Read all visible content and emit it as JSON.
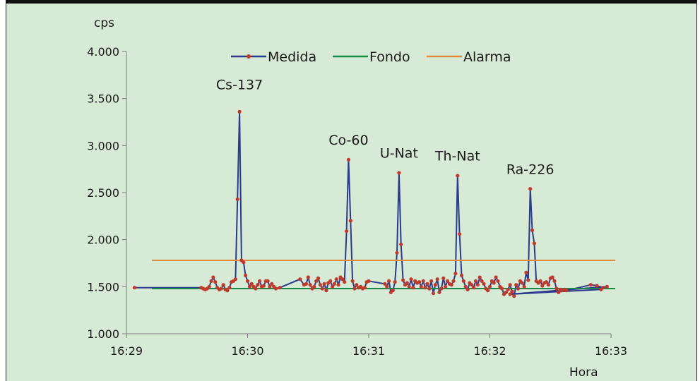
{
  "chart_data": {
    "type": "line",
    "ylabel": "cps",
    "xlabel": "Hora",
    "ylim": [
      1000,
      4000
    ],
    "yticks": [
      1000,
      1500,
      2000,
      2500,
      3000,
      3500,
      4000
    ],
    "ytick_labels": [
      "1.000",
      "1.500",
      "2.000",
      "2.500",
      "3.000",
      "3.500",
      "4.000"
    ],
    "xlim": [
      "16:29",
      "16:33"
    ],
    "xticks": [
      "16:29",
      "16:30",
      "16:31",
      "16:32",
      "16:33"
    ],
    "grid": false,
    "legend_position": "top",
    "series": [
      {
        "name": "Medida",
        "color": "#2b3a8c",
        "marker_color": "#c0392b",
        "marker": "circle",
        "points": [
          [
            "16:29:04",
            1490
          ],
          [
            "16:29:37",
            1490
          ],
          [
            "16:29:38",
            1480
          ],
          [
            "16:29:39",
            1470
          ],
          [
            "16:29:40",
            1480
          ],
          [
            "16:29:41",
            1500
          ],
          [
            "16:29:42",
            1560
          ],
          [
            "16:29:43",
            1600
          ],
          [
            "16:29:44",
            1550
          ],
          [
            "16:29:45",
            1490
          ],
          [
            "16:29:46",
            1470
          ],
          [
            "16:29:47",
            1480
          ],
          [
            "16:29:48",
            1520
          ],
          [
            "16:29:49",
            1470
          ],
          [
            "16:29:50",
            1460
          ],
          [
            "16:29:51",
            1490
          ],
          [
            "16:29:52",
            1550
          ],
          [
            "16:29:53",
            1560
          ],
          [
            "16:29:54",
            1580
          ],
          [
            "16:29:55",
            2430
          ],
          [
            "16:29:56",
            3360
          ],
          [
            "16:29:57",
            1780
          ],
          [
            "16:29:58",
            1760
          ],
          [
            "16:29:59",
            1620
          ],
          [
            "16:30:00",
            1560
          ],
          [
            "16:30:01",
            1500
          ],
          [
            "16:30:02",
            1530
          ],
          [
            "16:30:03",
            1500
          ],
          [
            "16:30:04",
            1480
          ],
          [
            "16:30:05",
            1520
          ],
          [
            "16:30:06",
            1560
          ],
          [
            "16:30:07",
            1500
          ],
          [
            "16:30:08",
            1510
          ],
          [
            "16:30:09",
            1560
          ],
          [
            "16:30:10",
            1560
          ],
          [
            "16:30:11",
            1500
          ],
          [
            "16:30:12",
            1530
          ],
          [
            "16:30:13",
            1500
          ],
          [
            "16:30:14",
            1480
          ],
          [
            "16:30:16",
            1490
          ],
          [
            "16:30:26",
            1580
          ],
          [
            "16:30:28",
            1520
          ],
          [
            "16:30:29",
            1530
          ],
          [
            "16:30:30",
            1600
          ],
          [
            "16:30:31",
            1520
          ],
          [
            "16:30:32",
            1480
          ],
          [
            "16:30:33",
            1500
          ],
          [
            "16:30:34",
            1560
          ],
          [
            "16:30:35",
            1590
          ],
          [
            "16:30:36",
            1520
          ],
          [
            "16:30:37",
            1480
          ],
          [
            "16:30:38",
            1530
          ],
          [
            "16:30:39",
            1460
          ],
          [
            "16:30:40",
            1540
          ],
          [
            "16:30:41",
            1560
          ],
          [
            "16:30:42",
            1500
          ],
          [
            "16:30:43",
            1530
          ],
          [
            "16:30:44",
            1580
          ],
          [
            "16:30:45",
            1520
          ],
          [
            "16:30:46",
            1600
          ],
          [
            "16:30:47",
            1580
          ],
          [
            "16:30:48",
            1550
          ],
          [
            "16:30:49",
            2090
          ],
          [
            "16:30:50",
            2850
          ],
          [
            "16:30:51",
            2200
          ],
          [
            "16:30:52",
            1560
          ],
          [
            "16:30:53",
            1480
          ],
          [
            "16:30:54",
            1520
          ],
          [
            "16:30:55",
            1490
          ],
          [
            "16:30:56",
            1500
          ],
          [
            "16:30:57",
            1480
          ],
          [
            "16:30:58",
            1490
          ],
          [
            "16:30:59",
            1550
          ],
          [
            "16:31:00",
            1560
          ],
          [
            "16:31:08",
            1530
          ],
          [
            "16:31:09",
            1500
          ],
          [
            "16:31:10",
            1560
          ],
          [
            "16:31:11",
            1440
          ],
          [
            "16:31:12",
            1460
          ],
          [
            "16:31:13",
            1550
          ],
          [
            "16:31:14",
            1860
          ],
          [
            "16:31:15",
            2710
          ],
          [
            "16:31:16",
            1950
          ],
          [
            "16:31:17",
            1570
          ],
          [
            "16:31:18",
            1520
          ],
          [
            "16:31:19",
            1540
          ],
          [
            "16:31:20",
            1500
          ],
          [
            "16:31:21",
            1580
          ],
          [
            "16:31:22",
            1490
          ],
          [
            "16:31:23",
            1560
          ],
          [
            "16:31:24",
            1540
          ],
          [
            "16:31:25",
            1550
          ],
          [
            "16:31:26",
            1500
          ],
          [
            "16:31:27",
            1560
          ],
          [
            "16:31:28",
            1490
          ],
          [
            "16:31:29",
            1530
          ],
          [
            "16:31:30",
            1480
          ],
          [
            "16:31:31",
            1560
          ],
          [
            "16:31:32",
            1430
          ],
          [
            "16:31:33",
            1520
          ],
          [
            "16:31:34",
            1580
          ],
          [
            "16:31:35",
            1440
          ],
          [
            "16:31:36",
            1480
          ],
          [
            "16:31:37",
            1590
          ],
          [
            "16:31:38",
            1500
          ],
          [
            "16:31:39",
            1560
          ],
          [
            "16:31:40",
            1530
          ],
          [
            "16:31:41",
            1520
          ],
          [
            "16:31:42",
            1560
          ],
          [
            "16:31:43",
            1640
          ],
          [
            "16:31:44",
            2680
          ],
          [
            "16:31:45",
            2060
          ],
          [
            "16:31:46",
            1620
          ],
          [
            "16:31:47",
            1560
          ],
          [
            "16:31:48",
            1500
          ],
          [
            "16:31:49",
            1470
          ],
          [
            "16:31:50",
            1540
          ],
          [
            "16:31:51",
            1520
          ],
          [
            "16:31:52",
            1490
          ],
          [
            "16:31:53",
            1560
          ],
          [
            "16:31:54",
            1520
          ],
          [
            "16:31:55",
            1600
          ],
          [
            "16:31:56",
            1560
          ],
          [
            "16:31:57",
            1530
          ],
          [
            "16:31:58",
            1480
          ],
          [
            "16:31:59",
            1460
          ],
          [
            "16:32:00",
            1500
          ],
          [
            "16:32:01",
            1560
          ],
          [
            "16:32:02",
            1540
          ],
          [
            "16:32:03",
            1600
          ],
          [
            "16:32:04",
            1560
          ],
          [
            "16:32:05",
            1500
          ],
          [
            "16:32:06",
            1480
          ],
          [
            "16:32:07",
            1420
          ],
          [
            "16:32:08",
            1440
          ],
          [
            "16:32:09",
            1470
          ],
          [
            "16:32:10",
            1520
          ],
          [
            "16:32:11",
            1450
          ],
          [
            "16:32:12",
            1400
          ],
          [
            "16:32:13",
            1520
          ],
          [
            "16:32:14",
            1480
          ],
          [
            "16:32:15",
            1560
          ],
          [
            "16:32:16",
            1540
          ],
          [
            "16:32:17",
            1500
          ],
          [
            "16:32:18",
            1650
          ],
          [
            "16:32:19",
            1570
          ],
          [
            "16:32:20",
            2540
          ],
          [
            "16:32:21",
            2100
          ],
          [
            "16:32:22",
            1960
          ],
          [
            "16:32:23",
            1560
          ],
          [
            "16:32:24",
            1540
          ],
          [
            "16:32:25",
            1560
          ],
          [
            "16:32:26",
            1510
          ],
          [
            "16:32:27",
            1540
          ],
          [
            "16:32:28",
            1550
          ],
          [
            "16:32:29",
            1520
          ],
          [
            "16:32:30",
            1590
          ],
          [
            "16:32:31",
            1600
          ],
          [
            "16:32:32",
            1560
          ],
          [
            "16:32:33",
            1480
          ],
          [
            "16:32:34",
            1440
          ],
          [
            "16:32:35",
            1470
          ],
          [
            "16:32:36",
            1460
          ],
          [
            "16:32:37",
            1470
          ],
          [
            "16:32:38",
            1460
          ],
          [
            "16:32:50",
            1520
          ],
          [
            "16:32:53",
            1510
          ],
          [
            "16:32:56",
            1490
          ],
          [
            "16:32:58",
            1500
          ],
          [
            "16:32:10",
            1420
          ],
          [
            "16:32:55",
            1470
          ]
        ]
      },
      {
        "name": "Fondo",
        "color": "#1a8a4a",
        "values": [
          1480,
          1480
        ]
      },
      {
        "name": "Alarma",
        "color": "#e08a3c",
        "values": [
          1780,
          1780
        ]
      }
    ],
    "annotations": [
      {
        "text": "Cs-137",
        "x": "16:29:56",
        "y": 3600
      },
      {
        "text": "Co-60",
        "x": "16:30:50",
        "y": 3010
      },
      {
        "text": "U-Nat",
        "x": "16:31:15",
        "y": 2870
      },
      {
        "text": "Th-Nat",
        "x": "16:31:44",
        "y": 2840
      },
      {
        "text": "Ra-226",
        "x": "16:32:20",
        "y": 2700
      }
    ]
  }
}
